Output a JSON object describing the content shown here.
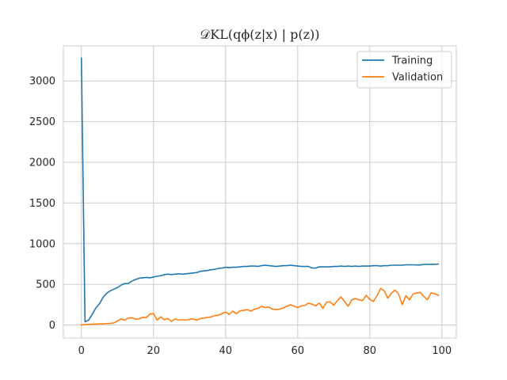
{
  "chart_data": {
    "type": "line",
    "title": "𝒟KL(qϕ(z|x) | p(z))",
    "xlabel": "",
    "ylabel": "",
    "xlim": [
      -5,
      104
    ],
    "ylim": [
      -160,
      3430
    ],
    "xticks": [
      0,
      20,
      40,
      60,
      80,
      100
    ],
    "yticks": [
      0,
      500,
      1000,
      1500,
      2000,
      2500,
      3000
    ],
    "grid": true,
    "legend": "top-right",
    "series": [
      {
        "name": "Training",
        "color": "#1f77b4",
        "x": [
          0,
          1,
          2,
          3,
          4,
          5,
          6,
          7,
          8,
          9,
          10,
          11,
          12,
          13,
          14,
          15,
          16,
          17,
          18,
          19,
          20,
          21,
          22,
          23,
          24,
          25,
          26,
          27,
          28,
          29,
          30,
          31,
          32,
          33,
          34,
          35,
          36,
          37,
          38,
          39,
          40,
          41,
          42,
          43,
          44,
          45,
          46,
          47,
          48,
          49,
          50,
          51,
          52,
          53,
          54,
          55,
          56,
          57,
          58,
          59,
          60,
          61,
          62,
          63,
          64,
          65,
          66,
          67,
          68,
          69,
          70,
          71,
          72,
          73,
          74,
          75,
          76,
          77,
          78,
          79,
          80,
          81,
          82,
          83,
          84,
          85,
          86,
          87,
          88,
          89,
          90,
          91,
          92,
          93,
          94,
          95,
          96,
          97,
          98,
          99
        ],
        "values": [
          3280,
          40,
          60,
          130,
          210,
          260,
          340,
          390,
          420,
          440,
          460,
          490,
          510,
          510,
          540,
          560,
          575,
          580,
          585,
          580,
          590,
          600,
          605,
          620,
          625,
          620,
          625,
          630,
          625,
          630,
          635,
          640,
          645,
          660,
          665,
          670,
          680,
          685,
          695,
          700,
          710,
          705,
          710,
          710,
          715,
          720,
          720,
          725,
          725,
          720,
          730,
          735,
          730,
          725,
          720,
          725,
          730,
          730,
          735,
          730,
          725,
          720,
          720,
          720,
          700,
          700,
          715,
          715,
          715,
          715,
          720,
          720,
          725,
          720,
          725,
          720,
          725,
          720,
          725,
          725,
          725,
          730,
          730,
          725,
          730,
          730,
          735,
          735,
          735,
          735,
          740,
          740,
          740,
          738,
          738,
          745,
          745,
          745,
          745,
          750
        ]
      },
      {
        "name": "Validation",
        "color": "#ff7f0e",
        "x": [
          0,
          1,
          2,
          3,
          4,
          5,
          6,
          7,
          8,
          9,
          10,
          11,
          12,
          13,
          14,
          15,
          16,
          17,
          18,
          19,
          20,
          21,
          22,
          23,
          24,
          25,
          26,
          27,
          28,
          29,
          30,
          31,
          32,
          33,
          34,
          35,
          36,
          37,
          38,
          39,
          40,
          41,
          42,
          43,
          44,
          45,
          46,
          47,
          48,
          49,
          50,
          51,
          52,
          53,
          54,
          55,
          56,
          57,
          58,
          59,
          60,
          61,
          62,
          63,
          64,
          65,
          66,
          67,
          68,
          69,
          70,
          71,
          72,
          73,
          74,
          75,
          76,
          77,
          78,
          79,
          80,
          81,
          82,
          83,
          84,
          85,
          86,
          87,
          88,
          89,
          90,
          91,
          92,
          93,
          94,
          95,
          96,
          97,
          98,
          99
        ],
        "values": [
          0,
          5,
          8,
          10,
          12,
          15,
          14,
          18,
          20,
          25,
          50,
          75,
          60,
          85,
          90,
          70,
          75,
          95,
          90,
          135,
          140,
          60,
          100,
          65,
          80,
          45,
          75,
          60,
          65,
          60,
          70,
          75,
          60,
          80,
          85,
          95,
          100,
          115,
          120,
          140,
          160,
          130,
          170,
          140,
          175,
          180,
          190,
          170,
          195,
          205,
          230,
          215,
          220,
          195,
          190,
          195,
          210,
          230,
          250,
          230,
          215,
          235,
          240,
          270,
          255,
          235,
          270,
          205,
          280,
          285,
          245,
          300,
          345,
          290,
          230,
          310,
          325,
          310,
          300,
          365,
          315,
          290,
          360,
          450,
          420,
          330,
          390,
          430,
          380,
          250,
          360,
          310,
          380,
          395,
          400,
          350,
          310,
          395,
          385,
          365
        ]
      }
    ]
  }
}
